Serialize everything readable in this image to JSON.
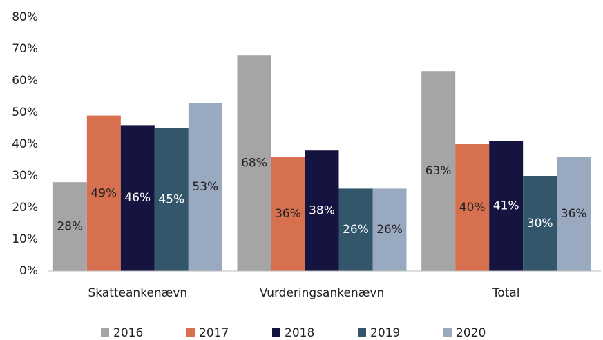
{
  "chart_data": {
    "type": "bar",
    "categories": [
      "Skatteankenævn",
      "Vurderingsankenævn",
      "Total"
    ],
    "series": [
      {
        "name": "2016",
        "color": "#a5a5a5",
        "label_color": "#222222",
        "values": [
          28,
          68,
          63
        ],
        "value_labels": [
          "28%",
          "68%",
          "63%"
        ]
      },
      {
        "name": "2017",
        "color": "#d6704e",
        "label_color": "#222222",
        "values": [
          49,
          36,
          40
        ],
        "value_labels": [
          "49%",
          "36%",
          "40%"
        ]
      },
      {
        "name": "2018",
        "color": "#15133f",
        "label_color": "#ffffff",
        "values": [
          46,
          38,
          41
        ],
        "value_labels": [
          "46%",
          "38%",
          "41%"
        ]
      },
      {
        "name": "2019",
        "color": "#33566b",
        "label_color": "#ffffff",
        "values": [
          45,
          26,
          30
        ],
        "value_labels": [
          "45%",
          "26%",
          "30%"
        ]
      },
      {
        "name": "2020",
        "color": "#98a9c0",
        "label_color": "#222222",
        "values": [
          53,
          26,
          36
        ],
        "value_labels": [
          "53%",
          "26%",
          "36%"
        ]
      }
    ],
    "ylim": [
      0,
      80
    ],
    "yticks": [
      {
        "value": 0,
        "label": "0%"
      },
      {
        "value": 10,
        "label": "10%"
      },
      {
        "value": 20,
        "label": "20%"
      },
      {
        "value": 30,
        "label": "30%"
      },
      {
        "value": 40,
        "label": "40%"
      },
      {
        "value": 50,
        "label": "50%"
      },
      {
        "value": 60,
        "label": "60%"
      },
      {
        "value": 70,
        "label": "70%"
      },
      {
        "value": 80,
        "label": "80%"
      }
    ],
    "grid": false,
    "legend": "bottom"
  }
}
